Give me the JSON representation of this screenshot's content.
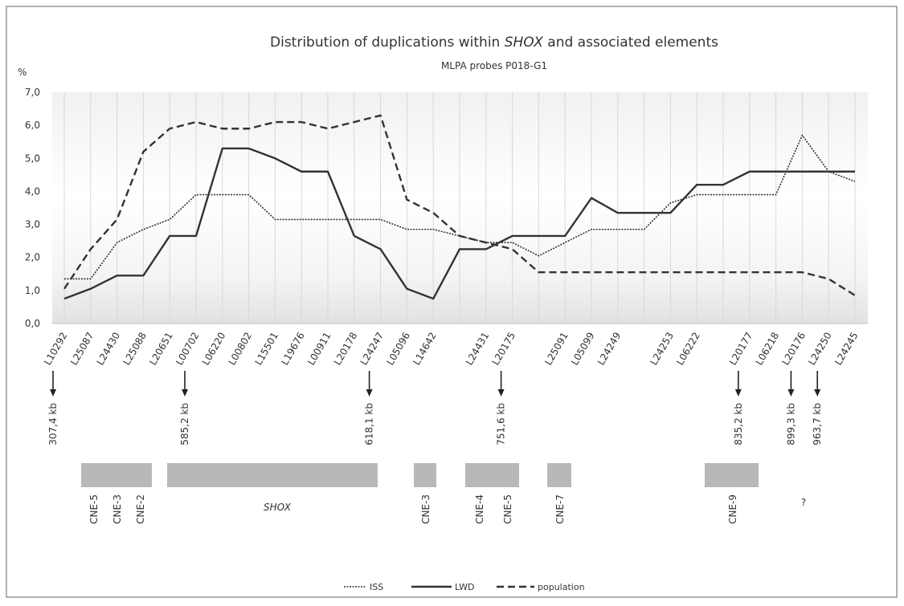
{
  "chart_data": {
    "type": "line",
    "title": [
      "Distribution of duplications within ",
      "SHOX",
      " and associated elements"
    ],
    "subtitle": "MLPA probes P018-G1",
    "y_label": "%",
    "categories": [
      "L10292",
      "L25087",
      "L24430",
      "L25088",
      "L20651",
      "L00702",
      "L06220",
      "L00802",
      "L15501",
      "L19676",
      "L00911",
      "L20178",
      "L24247",
      "L05096",
      "L14642",
      null,
      "L24431",
      "L20175",
      null,
      "L25091",
      "L05099",
      "L24249",
      null,
      "L24253",
      "L06222",
      null,
      "L20177",
      "L06218",
      "L20176",
      "L24250",
      "L24245"
    ],
    "series": [
      {
        "name": "ISS",
        "color": "#333333",
        "style": "dotted",
        "values": [
          1.35,
          1.35,
          2.45,
          2.85,
          3.15,
          3.9,
          3.9,
          3.9,
          3.15,
          3.15,
          3.15,
          3.15,
          3.15,
          2.85,
          2.85,
          2.65,
          2.45,
          2.45,
          2.05,
          2.45,
          2.85,
          2.85,
          2.85,
          3.65,
          3.9,
          3.9,
          3.9,
          3.9,
          5.7,
          4.6,
          4.3
        ]
      },
      {
        "name": "LWD",
        "color": "#333333",
        "style": "solid",
        "values": [
          0.75,
          1.05,
          1.45,
          1.45,
          2.65,
          2.65,
          5.3,
          5.3,
          5.0,
          4.6,
          4.6,
          2.65,
          2.25,
          1.05,
          0.75,
          2.25,
          2.25,
          2.65,
          2.65,
          2.65,
          3.8,
          3.35,
          3.35,
          3.35,
          4.2,
          4.2,
          4.6,
          4.6,
          4.6,
          4.6,
          4.6
        ]
      },
      {
        "name": "population",
        "color": "#333333",
        "style": "dashed",
        "values": [
          1.05,
          2.25,
          3.15,
          5.2,
          5.9,
          6.1,
          5.9,
          5.9,
          6.1,
          6.1,
          5.9,
          6.1,
          6.3,
          3.75,
          3.35,
          2.65,
          2.45,
          2.25,
          1.55,
          1.55,
          1.55,
          1.55,
          1.55,
          1.55,
          1.55,
          1.55,
          1.55,
          1.55,
          1.55,
          1.35,
          0.85
        ]
      }
    ],
    "ylim": [
      0,
      7
    ],
    "yticks": [
      {
        "value": 0,
        "label": "0,0"
      },
      {
        "value": 1,
        "label": "1,0"
      },
      {
        "value": 2,
        "label": "2,0"
      },
      {
        "value": 3,
        "label": "3,0"
      },
      {
        "value": 4,
        "label": "4,0"
      },
      {
        "value": 5,
        "label": "5,0"
      },
      {
        "value": 6,
        "label": "6,0"
      },
      {
        "value": 7,
        "label": "7,0"
      }
    ],
    "positions": [
      {
        "label": "307,4 kb",
        "probe": "L10292"
      },
      {
        "label": "585,2 kb",
        "probe": "L00702"
      },
      {
        "label": "618,1 kb",
        "probe": "L24247"
      },
      {
        "label": "751,6 kb",
        "probe": "L20175"
      },
      {
        "label": "835,2 kb",
        "probe": "L20177"
      },
      {
        "label": "899,3 kb",
        "probe": "L20176"
      },
      {
        "label": "963,7 kb",
        "probe": "L24250"
      }
    ],
    "elements": [
      {
        "labels": [
          "CNE-5",
          "CNE-3",
          "CNE-2"
        ]
      },
      {
        "labels": [
          "SHOX"
        ]
      },
      {
        "labels": [
          "CNE-3"
        ]
      },
      {
        "labels": [
          "CNE-4",
          "CNE-5"
        ]
      },
      {
        "labels": [
          "CNE-7"
        ]
      },
      {
        "labels": [
          "CNE-9"
        ]
      },
      {
        "labels": [
          "?"
        ]
      }
    ],
    "grid": true
  }
}
